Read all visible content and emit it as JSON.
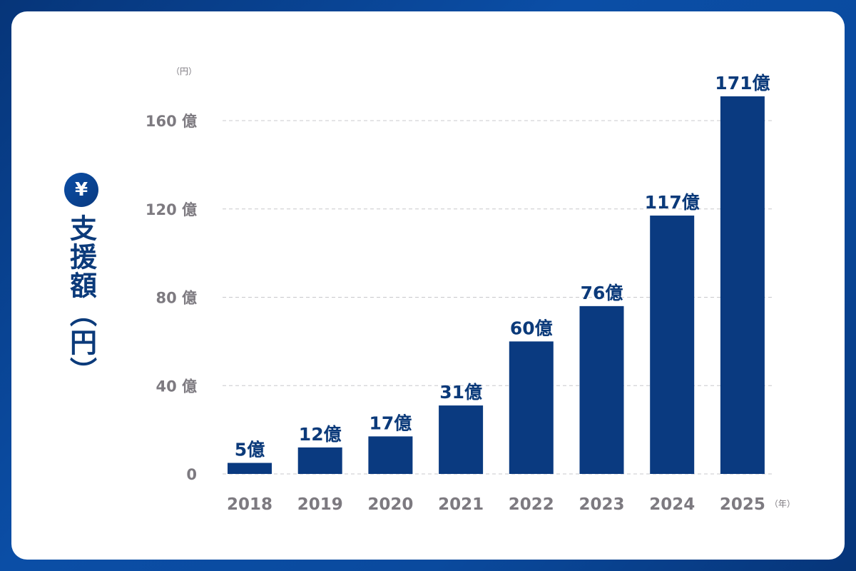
{
  "chart_data": {
    "type": "bar",
    "title": "",
    "ylabel": "支援額（円）",
    "y_unit_label": "（円）",
    "x_unit_label": "（年）",
    "categories": [
      "2018",
      "2019",
      "2020",
      "2021",
      "2022",
      "2023",
      "2024",
      "2025"
    ],
    "values": [
      5,
      12,
      17,
      31,
      60,
      76,
      117,
      171
    ],
    "data_labels": [
      "5億",
      "12億",
      "17億",
      "31億",
      "60億",
      "76億",
      "117億",
      "171億"
    ],
    "yticks": [
      0,
      40,
      80,
      120,
      160
    ],
    "ytick_labels": [
      "0",
      "40 億",
      "80 億",
      "120 億",
      "160 億"
    ],
    "ylim": [
      0,
      175
    ],
    "grid": true,
    "colors": {
      "bar": "#0a3a80",
      "label": "#0b3a7a",
      "tick": "#7d7a80",
      "grid": "#c8c8cc",
      "frame": "#0b4ea6"
    }
  },
  "icons": {
    "ylabel_icon": "yen-circle-icon",
    "ylabel_icon_glyph": "¥"
  }
}
